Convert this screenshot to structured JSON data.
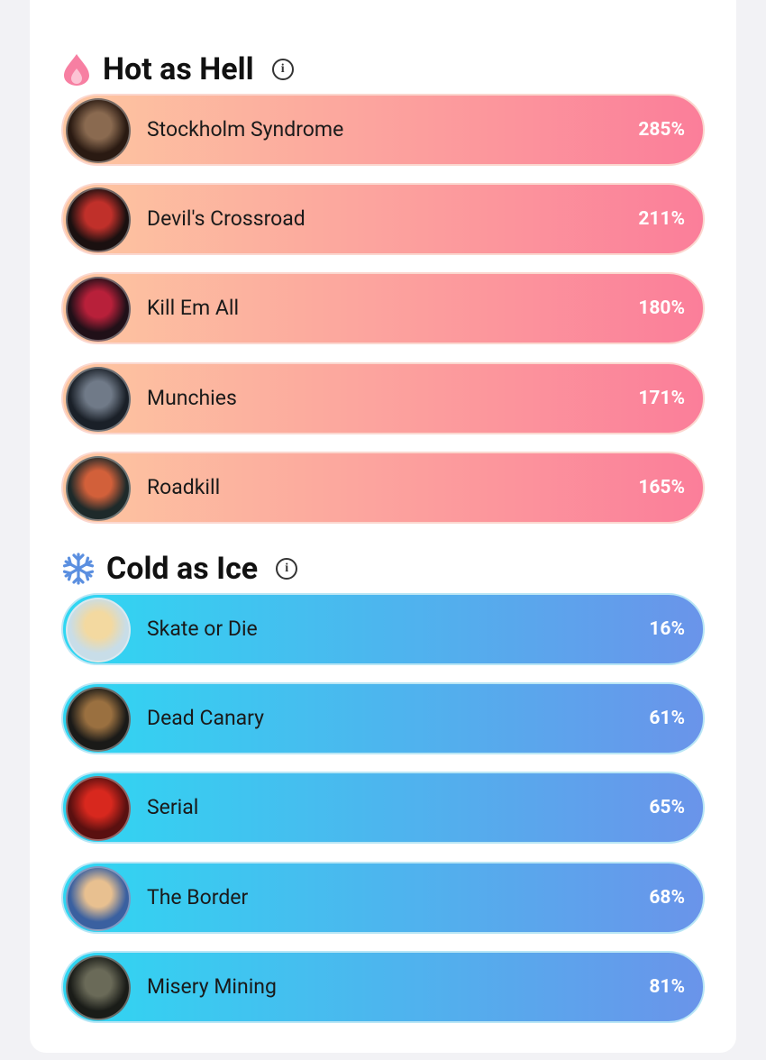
{
  "sections": [
    {
      "title": "Hot as Hell",
      "items": [
        {
          "name": "Stockholm Syndrome",
          "value": "285%"
        },
        {
          "name": "Devil's Crossroad",
          "value": "211%"
        },
        {
          "name": "Kill Em All",
          "value": "180%"
        },
        {
          "name": "Munchies",
          "value": "171%"
        },
        {
          "name": "Roadkill",
          "value": "165%"
        }
      ]
    },
    {
      "title": "Cold as Ice",
      "items": [
        {
          "name": "Skate or Die",
          "value": "16%"
        },
        {
          "name": "Dead Canary",
          "value": "61%"
        },
        {
          "name": "Serial",
          "value": "65%"
        },
        {
          "name": "The Border",
          "value": "68%"
        },
        {
          "name": "Misery Mining",
          "value": "81%"
        }
      ]
    }
  ]
}
